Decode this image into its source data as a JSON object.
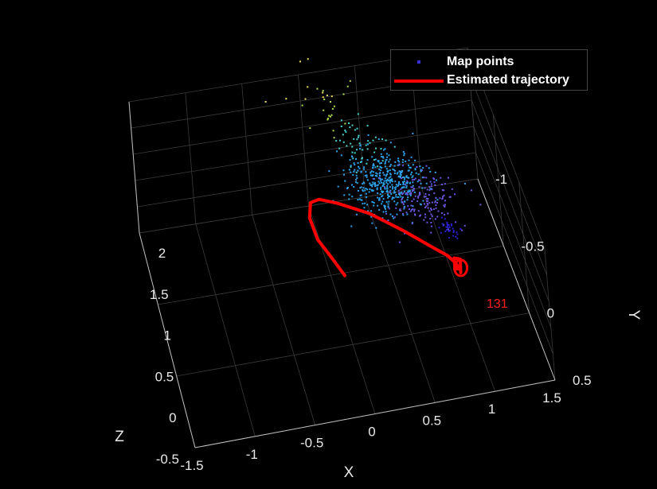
{
  "chart_data": {
    "type": "scatter3d",
    "xlabel": "X",
    "ylabel": "Y",
    "zlabel": "Z",
    "x_ticks": [
      "-1.5",
      "-1",
      "-0.5",
      "0",
      "0.5",
      "1",
      "1.5"
    ],
    "y_ticks": [
      "-1",
      "-0.5",
      "0",
      "0.5"
    ],
    "z_ticks": [
      "-0.5",
      "0",
      "0.5",
      "1",
      "1.5",
      "2"
    ],
    "xlim": [
      -1.5,
      1.5
    ],
    "ylim": [
      -1,
      0.5
    ],
    "zlim": [
      -0.5,
      2
    ],
    "y_reversed": true,
    "grid": true,
    "legend_placement": "top-right",
    "annotation": "131",
    "colors": {
      "background": "#000000",
      "grid": "#3a3a3a",
      "axis": "#bfbfbf",
      "trajectory": "#ff0000",
      "annotation": "#ff2020",
      "legend_marker": "#3333cc"
    },
    "series": [
      {
        "name": "Map points",
        "kind": "points",
        "colormap": [
          "#f2e65a",
          "#6fd36a",
          "#2bb6d8",
          "#2f95f0",
          "#5a4fd8",
          "#3b2ad0"
        ],
        "clusters": [
          {
            "x": 0.55,
            "y": -0.55,
            "z": 0.95,
            "count": 420,
            "spread": [
              0.18,
              0.12,
              0.1
            ],
            "color": "#2ea4ec"
          },
          {
            "x": 0.8,
            "y": -0.4,
            "z": 0.9,
            "count": 160,
            "spread": [
              0.15,
              0.1,
              0.08
            ],
            "color": "#6a56e0"
          },
          {
            "x": 0.4,
            "y": -0.75,
            "z": 1.25,
            "count": 50,
            "spread": [
              0.1,
              0.1,
              0.1
            ],
            "color": "#48d4cf"
          },
          {
            "x": 0.2,
            "y": -0.9,
            "z": 1.55,
            "count": 20,
            "spread": [
              0.1,
              0.1,
              0.15
            ],
            "color": "#b5e050"
          },
          {
            "x": 0.05,
            "y": -1.0,
            "z": 1.85,
            "count": 10,
            "spread": [
              0.15,
              0.1,
              0.15
            ],
            "color": "#f0e060"
          },
          {
            "x": 0.95,
            "y": -0.2,
            "z": 0.8,
            "count": 30,
            "spread": [
              0.04,
              0.04,
              0.04
            ],
            "color": "#2a1fd0"
          }
        ]
      },
      {
        "name": "Estimated trajectory",
        "kind": "line",
        "points": [
          [
            -0.05,
            0.1,
            1.1
          ],
          [
            -0.12,
            0.0,
            1.2
          ],
          [
            -0.2,
            -0.1,
            1.32
          ],
          [
            -0.22,
            -0.22,
            1.42
          ],
          [
            -0.18,
            -0.3,
            1.48
          ],
          [
            -0.1,
            -0.32,
            1.46
          ],
          [
            0.05,
            -0.3,
            1.38
          ],
          [
            0.3,
            -0.25,
            1.22
          ],
          [
            0.55,
            -0.15,
            1.05
          ],
          [
            0.75,
            -0.05,
            0.92
          ],
          [
            0.85,
            0.0,
            0.86
          ],
          [
            0.9,
            0.05,
            0.82
          ],
          [
            0.92,
            0.08,
            0.78
          ],
          [
            0.88,
            0.08,
            0.8
          ],
          [
            0.9,
            0.02,
            0.84
          ],
          [
            0.95,
            0.02,
            0.8
          ],
          [
            0.92,
            0.1,
            0.76
          ]
        ]
      }
    ]
  }
}
